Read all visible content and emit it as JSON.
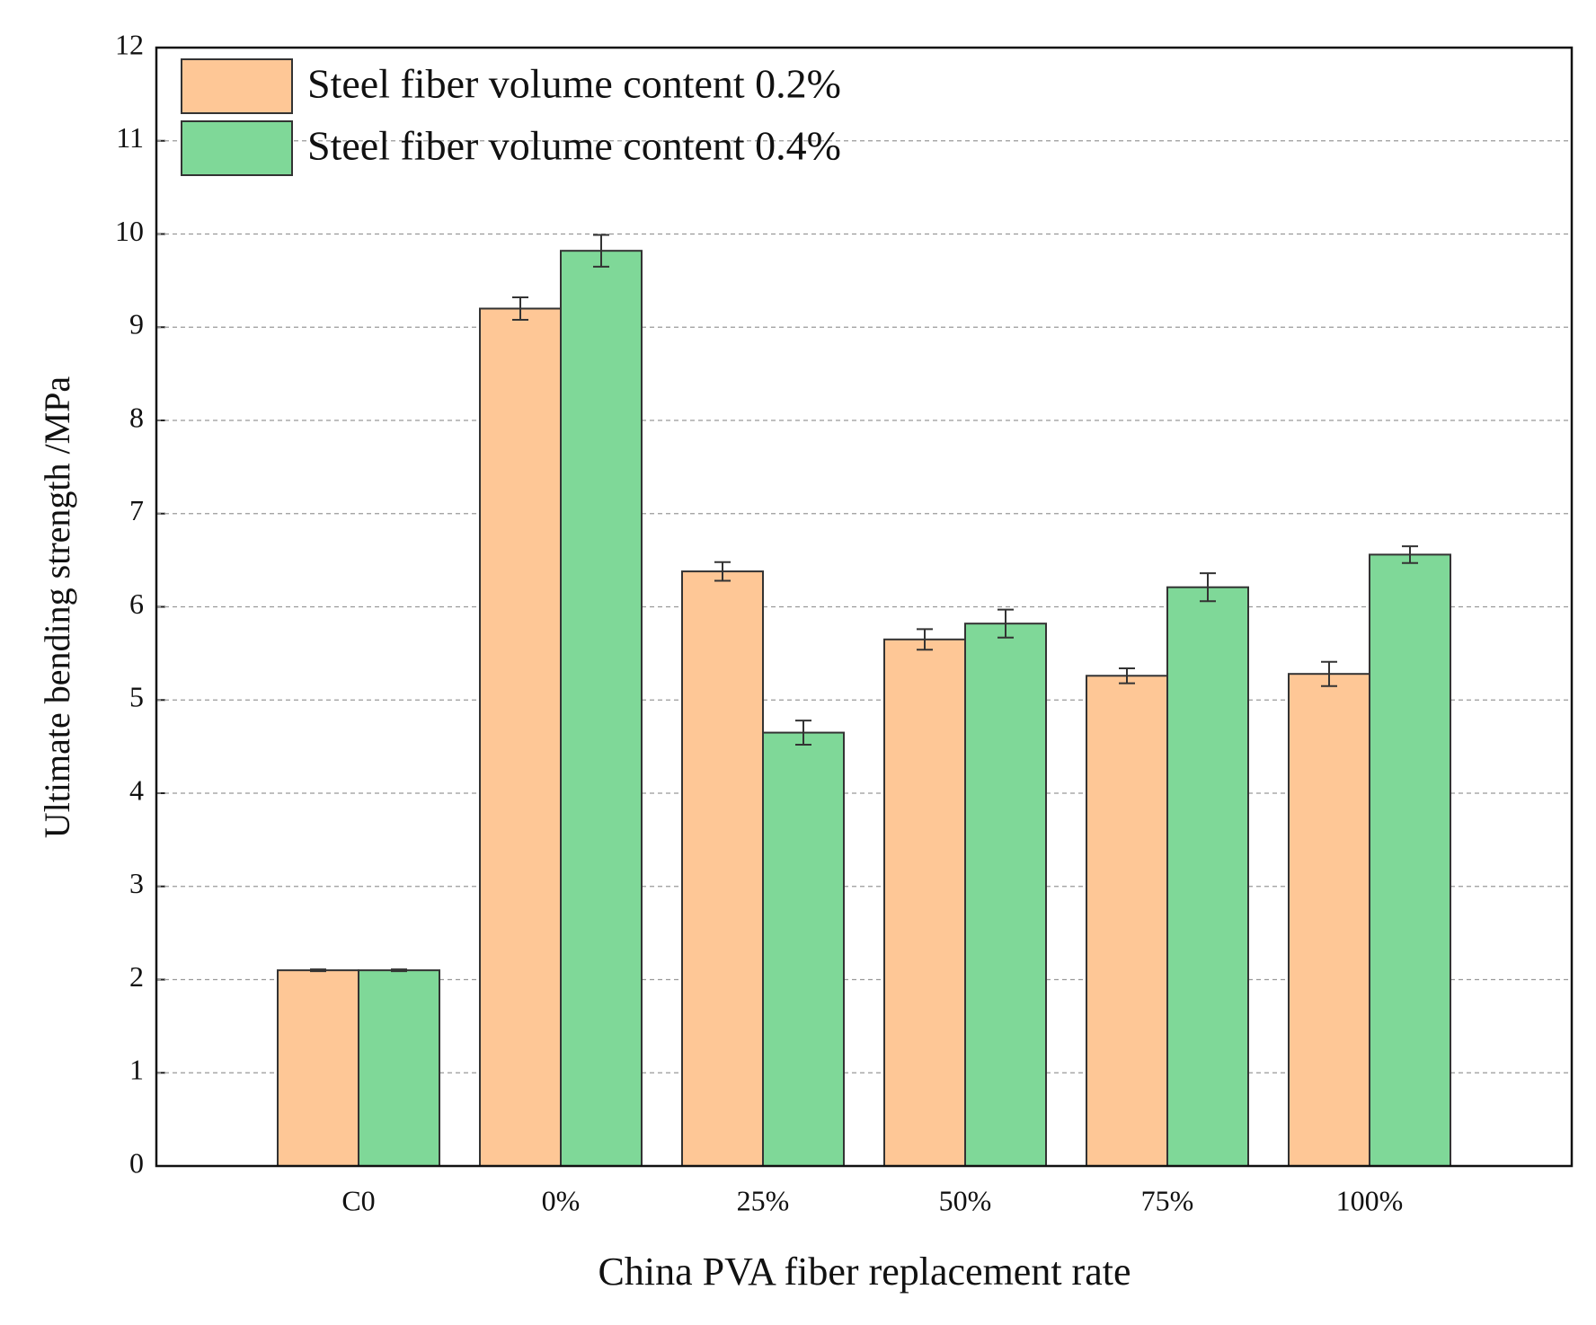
{
  "chart_data": {
    "type": "bar",
    "x_label": "China PVA fiber replacement rate",
    "y_label": "Ultimate bending strength /MPa",
    "categories": [
      "C0",
      "0%",
      "25%",
      "50%",
      "75%",
      "100%"
    ],
    "series": [
      {
        "name": "Steel fiber volume content 0.2%",
        "color": "#fec796",
        "values": [
          2.1,
          9.2,
          6.38,
          5.65,
          5.26,
          5.28
        ],
        "errors": [
          0.01,
          0.12,
          0.1,
          0.11,
          0.08,
          0.13
        ]
      },
      {
        "name": "Steel fiber volume content 0.4%",
        "color": "#7fd898",
        "values": [
          2.1,
          9.82,
          4.65,
          5.82,
          6.21,
          6.56
        ],
        "errors": [
          0.01,
          0.17,
          0.13,
          0.15,
          0.15,
          0.09
        ]
      }
    ],
    "ylim": [
      0,
      12
    ],
    "yticks": [
      0,
      1,
      2,
      3,
      4,
      5,
      6,
      7,
      8,
      9,
      10,
      11,
      12
    ],
    "grid": true,
    "legend": "upper-left"
  }
}
